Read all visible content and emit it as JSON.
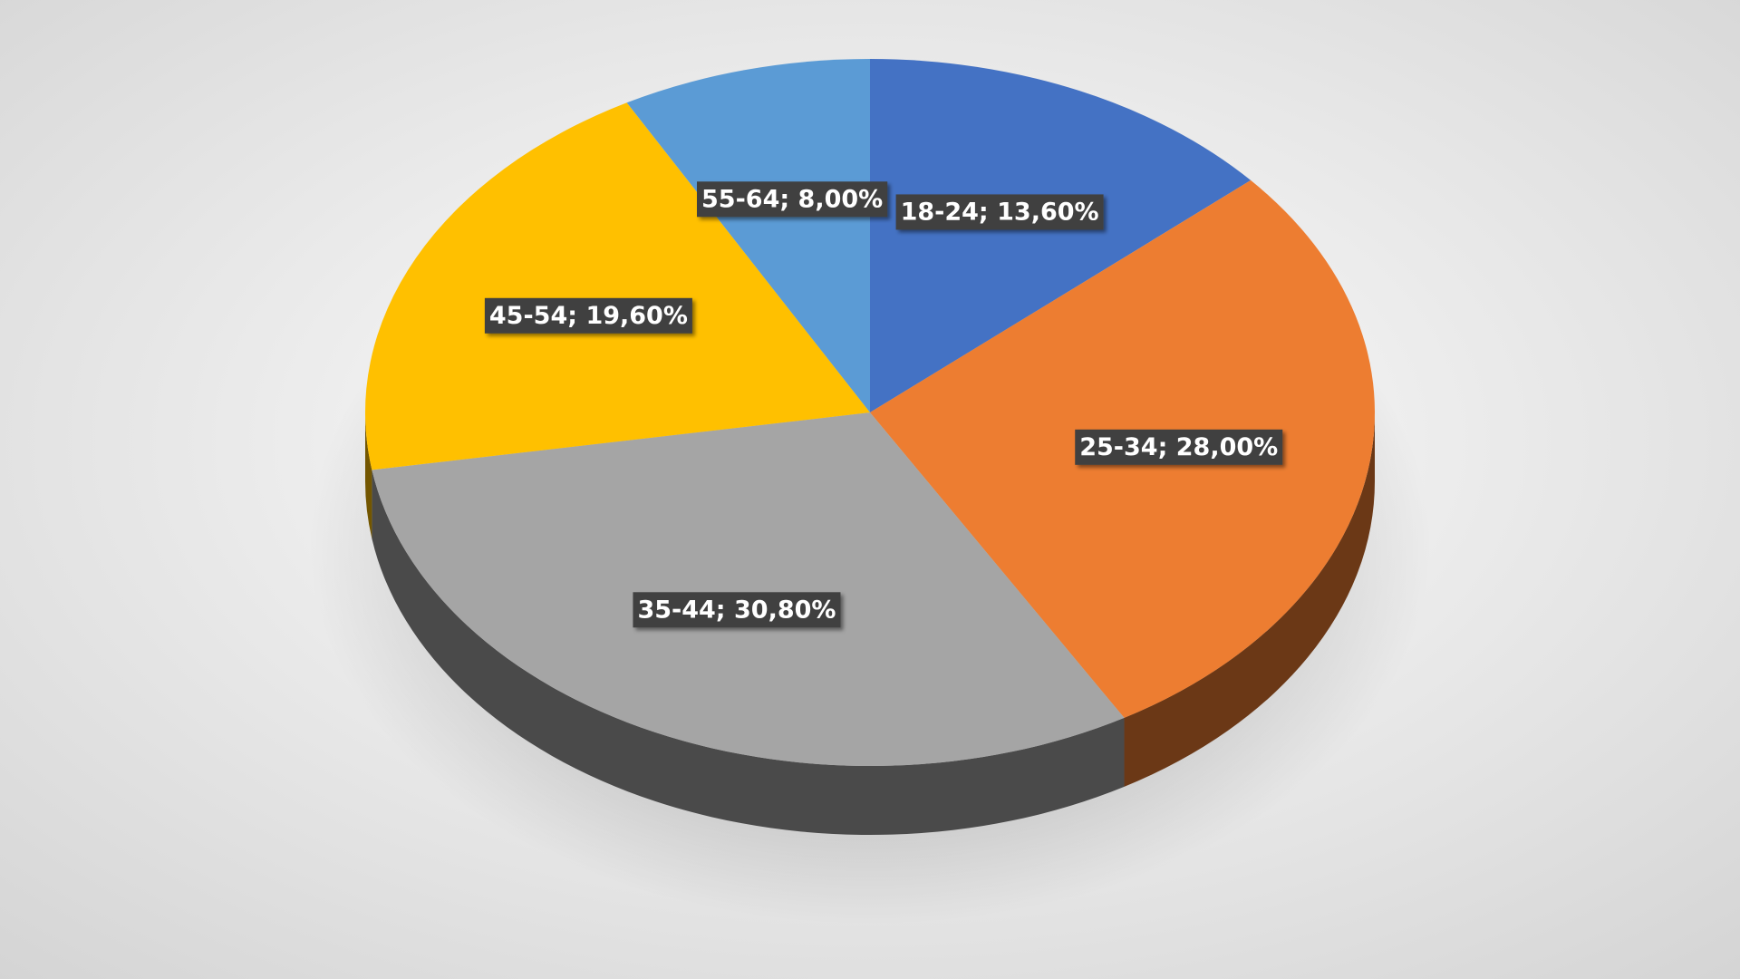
{
  "chart_data": {
    "type": "pie",
    "categories": [
      "18-24",
      "25-34",
      "35-44",
      "45-54",
      "55-64"
    ],
    "values": [
      13.6,
      28,
      30.8,
      19.6,
      8
    ],
    "value_labels": [
      "18-24; 13,60%",
      "25-34; 28,00%",
      "35-44; 30,80%",
      "45-54; 19,60%",
      "55-64; 8,00%"
    ],
    "colors": [
      "#4472c4",
      "#ed7d31",
      "#a5a5a5",
      "#ffc000",
      "#5b9bd5"
    ]
  }
}
